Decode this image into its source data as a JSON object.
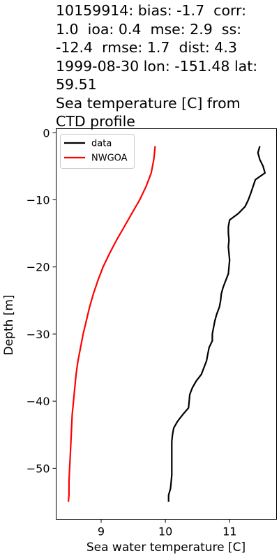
{
  "chart_data": {
    "type": "line",
    "title": "10159914: bias: -1.7  corr: 1.0  ioa: 0.4  mse: 2.9  ss: -12.4  rmse: 1.7  dist: 4.3 1999-08-30 lon: -151.48 lat: 59.51 Sea temperature [C] from CTD profile",
    "title_lines": [
      "10159914: bias: -1.7  corr:",
      "1.0  ioa: 0.4  mse: 2.9  ss:",
      "-12.4  rmse: 1.7  dist: 4.3",
      "1999-08-30 lon: -151.48 lat:",
      "59.51",
      "Sea temperature [C] from",
      "CTD profile"
    ],
    "xlabel": "Sea water temperature [C]",
    "ylabel": "Depth [m]",
    "xlim": [
      8.3,
      11.73
    ],
    "ylim": [
      -57.6,
      0.6
    ],
    "xticks": [
      9,
      10,
      11
    ],
    "yticks": [
      0,
      -10,
      -20,
      -30,
      -40,
      -50
    ],
    "xtick_labels": [
      "9",
      "10",
      "11"
    ],
    "ytick_labels": [
      "0",
      "−10",
      "−20",
      "−30",
      "−40",
      "−50"
    ],
    "grid": false,
    "legend_position": "upper-left",
    "series": [
      {
        "name": "data",
        "color": "#000000",
        "points": [
          [
            11.47,
            -2
          ],
          [
            11.44,
            -3
          ],
          [
            11.47,
            -4
          ],
          [
            11.52,
            -5
          ],
          [
            11.55,
            -6
          ],
          [
            11.4,
            -7
          ],
          [
            11.33,
            -9
          ],
          [
            11.29,
            -10
          ],
          [
            11.24,
            -11
          ],
          [
            11.14,
            -12
          ],
          [
            11.0,
            -13
          ],
          [
            10.98,
            -14
          ],
          [
            10.98,
            -15
          ],
          [
            10.99,
            -16
          ],
          [
            10.98,
            -17
          ],
          [
            10.99,
            -18
          ],
          [
            11.0,
            -19
          ],
          [
            10.99,
            -20
          ],
          [
            10.98,
            -21
          ],
          [
            10.94,
            -22
          ],
          [
            10.9,
            -23
          ],
          [
            10.87,
            -24
          ],
          [
            10.86,
            -25
          ],
          [
            10.84,
            -26
          ],
          [
            10.8,
            -27
          ],
          [
            10.77,
            -28
          ],
          [
            10.75,
            -29
          ],
          [
            10.73,
            -30
          ],
          [
            10.73,
            -31
          ],
          [
            10.68,
            -32
          ],
          [
            10.66,
            -33
          ],
          [
            10.64,
            -34
          ],
          [
            10.6,
            -35
          ],
          [
            10.56,
            -36
          ],
          [
            10.48,
            -37
          ],
          [
            10.42,
            -38
          ],
          [
            10.38,
            -39
          ],
          [
            10.37,
            -40
          ],
          [
            10.36,
            -41
          ],
          [
            10.27,
            -42
          ],
          [
            10.19,
            -43
          ],
          [
            10.13,
            -44
          ],
          [
            10.11,
            -45
          ],
          [
            10.1,
            -46
          ],
          [
            10.1,
            -48
          ],
          [
            10.1,
            -50
          ],
          [
            10.1,
            -51
          ],
          [
            10.09,
            -52
          ],
          [
            10.08,
            -53
          ],
          [
            10.05,
            -54
          ],
          [
            10.05,
            -55
          ]
        ]
      },
      {
        "name": "NWGOA",
        "color": "#ff0000",
        "points": [
          [
            9.84,
            -2
          ],
          [
            9.82,
            -4
          ],
          [
            9.78,
            -6
          ],
          [
            9.7,
            -8
          ],
          [
            9.6,
            -10
          ],
          [
            9.48,
            -12
          ],
          [
            9.36,
            -14
          ],
          [
            9.24,
            -16
          ],
          [
            9.13,
            -18
          ],
          [
            9.03,
            -20
          ],
          [
            8.95,
            -22
          ],
          [
            8.88,
            -24
          ],
          [
            8.82,
            -26
          ],
          [
            8.77,
            -28
          ],
          [
            8.72,
            -30
          ],
          [
            8.68,
            -32
          ],
          [
            8.64,
            -34
          ],
          [
            8.61,
            -36
          ],
          [
            8.59,
            -38
          ],
          [
            8.57,
            -40
          ],
          [
            8.55,
            -42
          ],
          [
            8.54,
            -44
          ],
          [
            8.53,
            -46
          ],
          [
            8.52,
            -48
          ],
          [
            8.51,
            -50
          ],
          [
            8.5,
            -52
          ],
          [
            8.5,
            -54
          ],
          [
            8.49,
            -55
          ]
        ]
      }
    ]
  }
}
